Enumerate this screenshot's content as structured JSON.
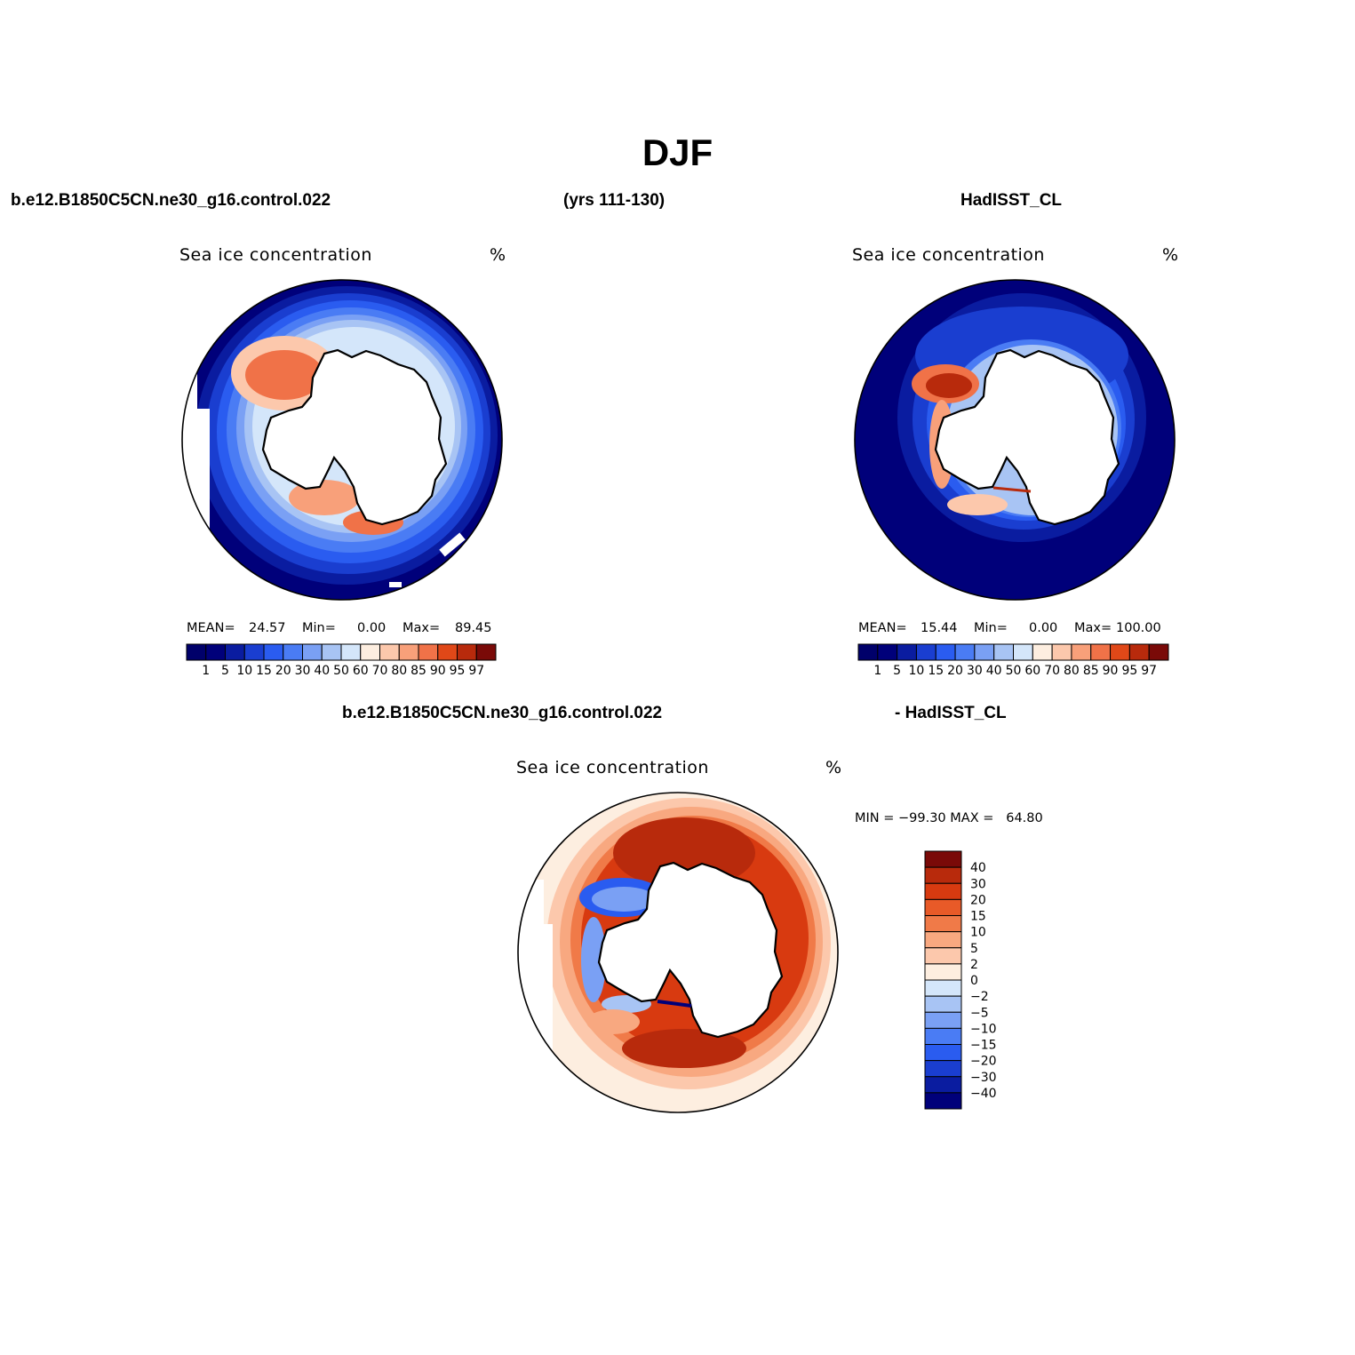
{
  "title": "DJF",
  "top_row": {
    "case_name": "b.e12.B1850C5CN.ne30_g16.control.022",
    "years": "(yrs 111-130)",
    "obs_name": "HadISST_CL"
  },
  "diff_header": {
    "case_name": "b.e12.B1850C5CN.ne30_g16.control.022",
    "obs_name": "- HadISST_CL"
  },
  "chart_data": [
    {
      "type": "heatmap",
      "projection": "south-polar-stereographic",
      "title": "Sea ice concentration",
      "units": "%",
      "stats": {
        "mean_label": "MEAN=",
        "mean": "24.57",
        "min_label": "Min=",
        "min": "0.00",
        "max_label": "Max=",
        "max": "89.45"
      },
      "levels": [
        "1",
        "5",
        "10",
        "15",
        "20",
        "30",
        "40",
        "50",
        "60",
        "70",
        "80",
        "85",
        "90",
        "95",
        "97"
      ],
      "colors": [
        "#00007a",
        "#0a1ca0",
        "#1a3ed0",
        "#2a5cf0",
        "#4a7cf4",
        "#7aa0f4",
        "#a8c4f4",
        "#d4e6fa",
        "#fdeee0",
        "#fcc8ac",
        "#f8a07a",
        "#f07248",
        "#e04818",
        "#b82a0c",
        "#7a0a08"
      ]
    },
    {
      "type": "heatmap",
      "projection": "south-polar-stereographic",
      "title": "Sea ice concentration",
      "units": "%",
      "stats": {
        "mean_label": "MEAN=",
        "mean": "15.44",
        "min_label": "Min=",
        "min": "0.00",
        "max_label": "Max=",
        "max": "100.00"
      },
      "levels": [
        "1",
        "5",
        "10",
        "15",
        "20",
        "30",
        "40",
        "50",
        "60",
        "70",
        "80",
        "85",
        "90",
        "95",
        "97"
      ],
      "colors": [
        "#00007a",
        "#0a1ca0",
        "#1a3ed0",
        "#2a5cf0",
        "#4a7cf4",
        "#7aa0f4",
        "#a8c4f4",
        "#d4e6fa",
        "#fdeee0",
        "#fcc8ac",
        "#f8a07a",
        "#f07248",
        "#e04818",
        "#b82a0c",
        "#7a0a08"
      ]
    },
    {
      "type": "heatmap",
      "projection": "south-polar-stereographic",
      "title": "Sea ice concentration",
      "units": "%",
      "minmax_text": "MIN = −99.30 MAX =   64.80",
      "levels": [
        "40",
        "30",
        "20",
        "15",
        "10",
        "5",
        "2",
        "0",
        "−2",
        "−5",
        "−10",
        "−15",
        "−20",
        "−30",
        "−40"
      ],
      "colors": [
        "#7a0a08",
        "#b82a0c",
        "#d83a10",
        "#e85a28",
        "#f07a48",
        "#f8a880",
        "#fcc8ac",
        "#fdeee0",
        "#d4e6fa",
        "#a8c4f4",
        "#7aa0f4",
        "#4a7cf4",
        "#2a5cf0",
        "#1a3ed0",
        "#0a1ca0",
        "#00007a"
      ]
    }
  ]
}
